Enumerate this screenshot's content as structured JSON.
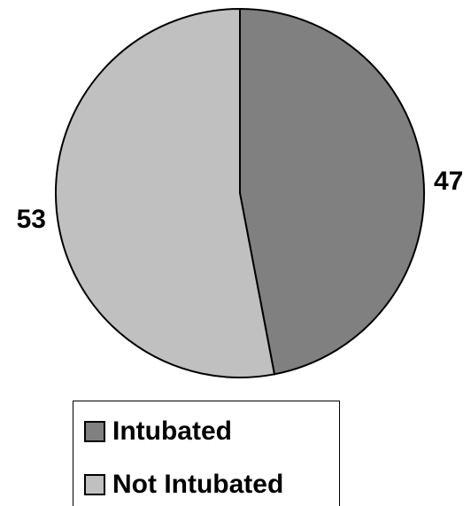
{
  "chart_data": {
    "type": "pie",
    "categories": [
      "Intubated",
      "Not Intubated"
    ],
    "values": [
      47,
      53
    ],
    "colors": [
      "#808080",
      "#c0c0c0"
    ],
    "edge_color": "#000000",
    "start_angle_deg": 0,
    "direction": "clockwise",
    "data_labels": [
      "47",
      "53"
    ],
    "legend": {
      "placement": "bottom",
      "entries": [
        "Intubated",
        "Not Intubated"
      ]
    }
  }
}
